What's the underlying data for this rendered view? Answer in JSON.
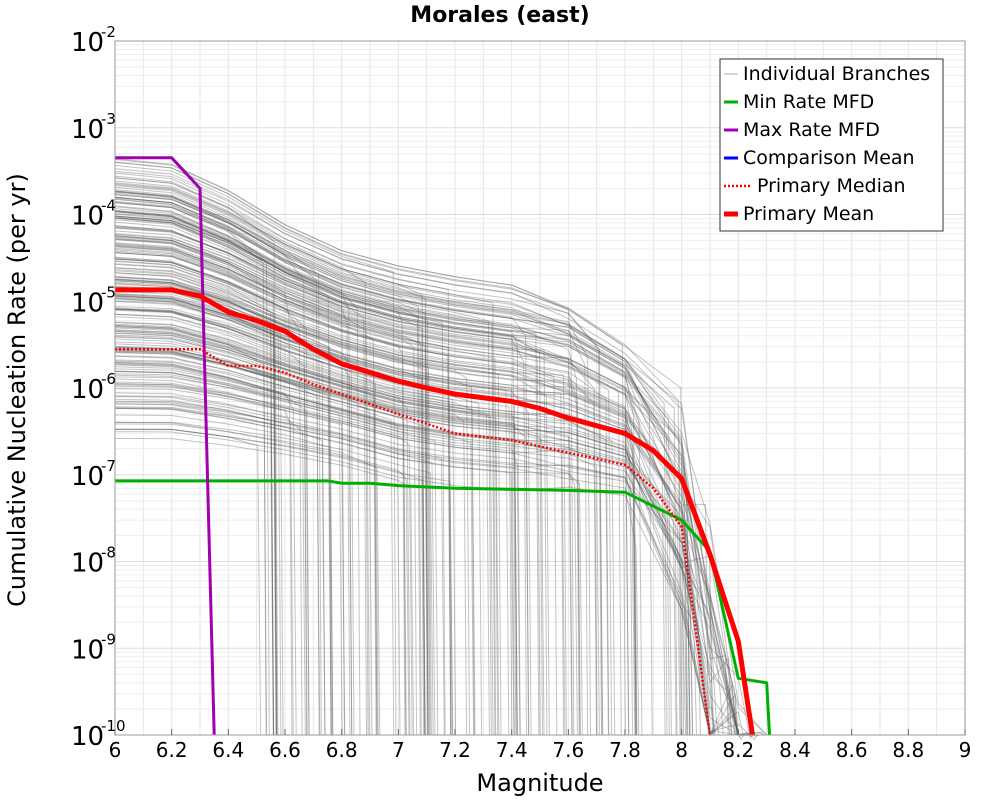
{
  "chart_data": {
    "type": "line",
    "title": "Morales (east)",
    "xlabel": "Magnitude",
    "ylabel": "Cumulative Nucleation Rate (per yr)",
    "xlim": [
      6,
      9
    ],
    "ylim": [
      1e-10,
      0.01
    ],
    "yscale": "log",
    "grid": true,
    "legend_position": "top-right",
    "x_ticks": [
      "6",
      "6.2",
      "6.4",
      "6.6",
      "6.8",
      "7",
      "7.2",
      "7.4",
      "7.6",
      "7.8",
      "8",
      "8.2",
      "8.4",
      "8.6",
      "8.8",
      "9"
    ],
    "y_ticks": [
      {
        "base": "10",
        "exp": "-10"
      },
      {
        "base": "10",
        "exp": "-9"
      },
      {
        "base": "10",
        "exp": "-8"
      },
      {
        "base": "10",
        "exp": "-7"
      },
      {
        "base": "10",
        "exp": "-6"
      },
      {
        "base": "10",
        "exp": "-5"
      },
      {
        "base": "10",
        "exp": "-4"
      },
      {
        "base": "10",
        "exp": "-3"
      },
      {
        "base": "10",
        "exp": "-2"
      }
    ],
    "series": [
      {
        "name": "Individual Branches",
        "color": "#555555",
        "style": "thin",
        "x": [
          6.0,
          6.2,
          6.4,
          6.6,
          6.8,
          7.0,
          7.2,
          7.4,
          7.6,
          7.8,
          8.0,
          8.1,
          8.2,
          8.3
        ],
        "upper": [
          0.00035,
          0.0003,
          0.00015,
          6e-05,
          3e-05,
          2e-05,
          1.5e-05,
          1.2e-05,
          8e-06,
          3e-06,
          1e-06,
          1e-07,
          1e-09,
          1e-10
        ],
        "lower": [
          3e-07,
          3e-07,
          2.5e-07,
          2e-07,
          1.5e-07,
          1e-07,
          8e-08,
          7e-08,
          6e-08,
          5e-08,
          1e-08,
          1e-09,
          1e-10,
          1e-10
        ]
      },
      {
        "name": "Min Rate MFD",
        "color": "#00b000",
        "style": "solid",
        "x": [
          6.0,
          6.5,
          6.75,
          6.8,
          6.9,
          7.0,
          7.2,
          7.4,
          7.6,
          7.8,
          8.0,
          8.1,
          8.2,
          8.3,
          8.31
        ],
        "y": [
          8.5e-08,
          8.5e-08,
          8.5e-08,
          8e-08,
          8e-08,
          7.5e-08,
          7e-08,
          6.8e-08,
          6.6e-08,
          6.3e-08,
          3e-08,
          1.3e-08,
          4.5e-10,
          4e-10,
          1e-10
        ]
      },
      {
        "name": "Max Rate MFD",
        "color": "#a000b0",
        "style": "solid",
        "x": [
          6.0,
          6.2,
          6.3,
          6.35
        ],
        "y": [
          0.00045,
          0.00045,
          0.0002,
          1e-10
        ]
      },
      {
        "name": "Comparison Mean",
        "color": "#0000ff",
        "style": "solid",
        "x": [],
        "y": []
      },
      {
        "name": "Primary Median",
        "color": "#ff0000",
        "style": "dotted",
        "x": [
          6.0,
          6.3,
          6.4,
          6.5,
          6.6,
          6.7,
          6.8,
          7.0,
          7.2,
          7.4,
          7.6,
          7.8,
          7.9,
          8.0,
          8.1
        ],
        "y": [
          2.8e-06,
          2.8e-06,
          1.8e-06,
          1.8e-06,
          1.5e-06,
          1.1e-06,
          8.5e-07,
          5e-07,
          3e-07,
          2.5e-07,
          1.8e-07,
          1.3e-07,
          7e-08,
          2.5e-08,
          1e-10
        ]
      },
      {
        "name": "Primary Mean",
        "color": "#ff0000",
        "style": "thick",
        "x": [
          6.0,
          6.2,
          6.3,
          6.4,
          6.5,
          6.6,
          6.7,
          6.8,
          7.0,
          7.1,
          7.2,
          7.4,
          7.5,
          7.6,
          7.8,
          7.9,
          8.0,
          8.1,
          8.2,
          8.25
        ],
        "y": [
          1.35e-05,
          1.35e-05,
          1.15e-05,
          7.5e-06,
          6e-06,
          4.5e-06,
          2.8e-06,
          1.9e-06,
          1.2e-06,
          1e-06,
          8.5e-07,
          7e-07,
          5.8e-07,
          4.5e-07,
          3e-07,
          1.9e-07,
          9e-08,
          1.2e-08,
          1.2e-09,
          1e-10
        ]
      }
    ]
  }
}
